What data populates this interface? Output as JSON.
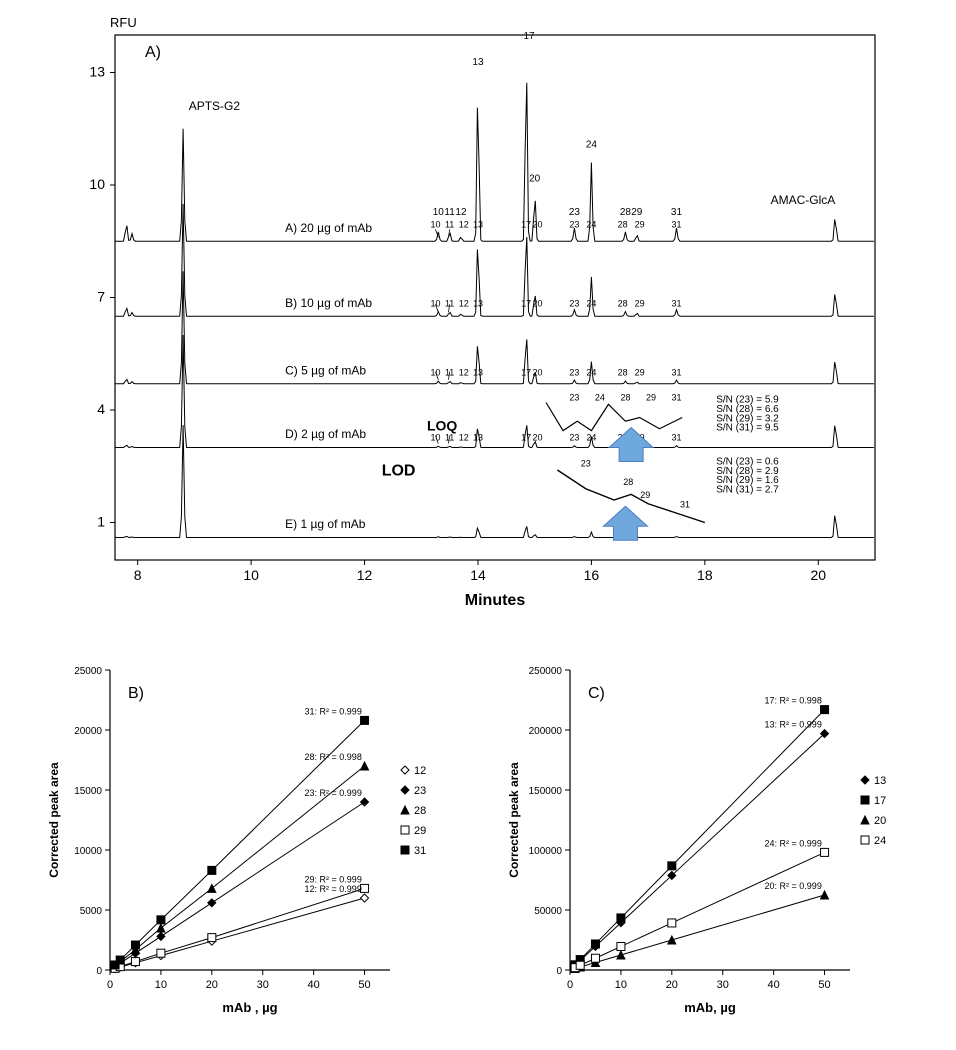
{
  "figure": {
    "background_color": "#ffffff",
    "stroke_color": "#000000",
    "arrow_color": "#6ea8dc",
    "arrow_stroke": "#4a7cbf"
  },
  "panelA": {
    "title": "A)",
    "y_axis_label": "RFU",
    "x_axis_label": "Minutes",
    "x_range": [
      7.6,
      21.0
    ],
    "x_ticks": [
      8,
      10,
      12,
      14,
      16,
      18,
      20
    ],
    "y_range": [
      0,
      14
    ],
    "y_ticks": [
      1,
      4,
      7,
      10,
      13
    ],
    "axis_fontsize": 14,
    "title_fontsize": 16,
    "label_fontsize": 11,
    "trace_color": "#000000",
    "trace_width": 1,
    "traces": [
      {
        "id": "A",
        "baseline": 8.5,
        "label": "A) 20 µg of mAb",
        "big": true
      },
      {
        "id": "B",
        "baseline": 6.5,
        "label": "B) 10 µg of mAb",
        "big": false
      },
      {
        "id": "C",
        "baseline": 4.7,
        "label": "C) 5 µg of mAb",
        "big": false
      },
      {
        "id": "D",
        "baseline": 3.0,
        "label": "D) 2 µg of mAb",
        "big": false
      },
      {
        "id": "E",
        "baseline": 0.6,
        "label": "E) 1 µg of mAb",
        "big": false
      }
    ],
    "peak_labels_top": [
      {
        "x": 8.9,
        "text": "APTS-G2"
      },
      {
        "x": 13.3,
        "text": "10"
      },
      {
        "x": 13.5,
        "text": "11"
      },
      {
        "x": 13.7,
        "text": "12"
      },
      {
        "x": 14.0,
        "text": "13"
      },
      {
        "x": 14.9,
        "text": "17"
      },
      {
        "x": 15.0,
        "text": "20"
      },
      {
        "x": 15.7,
        "text": "23"
      },
      {
        "x": 16.0,
        "text": "24"
      },
      {
        "x": 16.6,
        "text": "28"
      },
      {
        "x": 16.8,
        "text": "29"
      },
      {
        "x": 17.5,
        "text": "31"
      },
      {
        "x": 20.3,
        "text": "AMAC-GlcA"
      }
    ],
    "loq_label": "LOQ",
    "lod_label": "LOD",
    "sn_values_d": [
      "S/N (23) = 5.9",
      "S/N (28) = 6.6",
      "S/N (29) = 3.2",
      "S/N (31) = 9.5"
    ],
    "sn_values_e": [
      "S/N (23) = 0.6",
      "S/N (28) = 2.9",
      "S/N (29) = 1.6",
      "S/N (31) = 2.7"
    ]
  },
  "panelB": {
    "title": "B)",
    "x_label": "mAb , µg",
    "y_label": "Corrected peak area",
    "x_range": [
      0,
      55
    ],
    "x_ticks": [
      0,
      10,
      20,
      30,
      40,
      50
    ],
    "y_range": [
      0,
      25000
    ],
    "y_ticks": [
      0,
      5000,
      10000,
      15000,
      20000,
      25000
    ],
    "axis_fontsize": 12,
    "title_fontsize": 16,
    "series": [
      {
        "key": "12",
        "name": "12",
        "marker": "diamond",
        "fill": "#ffffff",
        "stroke": "#000000",
        "values": [
          [
            1,
            120
          ],
          [
            2,
            250
          ],
          [
            5,
            600
          ],
          [
            10,
            1200
          ],
          [
            20,
            2400
          ],
          [
            50,
            6000
          ]
        ],
        "r2_label": "12: R² = 0.999"
      },
      {
        "key": "23",
        "name": "23",
        "marker": "diamond",
        "fill": "#000000",
        "stroke": "#000000",
        "values": [
          [
            1,
            280
          ],
          [
            2,
            560
          ],
          [
            5,
            1400
          ],
          [
            10,
            2800
          ],
          [
            20,
            5600
          ],
          [
            50,
            14000
          ]
        ],
        "r2_label": "23: R² = 0.999"
      },
      {
        "key": "28",
        "name": "28",
        "marker": "triangle",
        "fill": "#000000",
        "stroke": "#000000",
        "values": [
          [
            1,
            340
          ],
          [
            2,
            680
          ],
          [
            5,
            1700
          ],
          [
            10,
            3500
          ],
          [
            20,
            6800
          ],
          [
            50,
            17000
          ]
        ],
        "r2_label": "28: R² = 0.998"
      },
      {
        "key": "29",
        "name": "29",
        "marker": "square",
        "fill": "#ffffff",
        "stroke": "#000000",
        "values": [
          [
            1,
            140
          ],
          [
            2,
            280
          ],
          [
            5,
            700
          ],
          [
            10,
            1400
          ],
          [
            20,
            2700
          ],
          [
            50,
            6800
          ]
        ],
        "r2_label": "29: R² = 0.999"
      },
      {
        "key": "31",
        "name": "31",
        "marker": "square",
        "fill": "#000000",
        "stroke": "#000000",
        "values": [
          [
            1,
            420
          ],
          [
            2,
            830
          ],
          [
            5,
            2080
          ],
          [
            10,
            4180
          ],
          [
            20,
            8300
          ],
          [
            50,
            20800
          ]
        ],
        "r2_label": "31: R² = 0.999"
      }
    ]
  },
  "panelC": {
    "title": "C)",
    "x_label": "mAb, µg",
    "y_label": "Corrected peak area",
    "x_range": [
      0,
      55
    ],
    "x_ticks": [
      0,
      10,
      20,
      30,
      40,
      50
    ],
    "y_range": [
      0,
      250000
    ],
    "y_ticks": [
      0,
      50000,
      100000,
      150000,
      200000,
      250000
    ],
    "axis_fontsize": 12,
    "title_fontsize": 16,
    "series": [
      {
        "key": "13",
        "name": "13",
        "marker": "diamond",
        "fill": "#000000",
        "stroke": "#000000",
        "values": [
          [
            1,
            3940
          ],
          [
            2,
            7880
          ],
          [
            5,
            19700
          ],
          [
            10,
            39400
          ],
          [
            20,
            78800
          ],
          [
            50,
            197000
          ]
        ],
        "r2_label": "13: R² = 0.999"
      },
      {
        "key": "17",
        "name": "17",
        "marker": "square",
        "fill": "#000000",
        "stroke": "#000000",
        "values": [
          [
            1,
            4340
          ],
          [
            2,
            8680
          ],
          [
            5,
            21700
          ],
          [
            10,
            43400
          ],
          [
            20,
            86800
          ],
          [
            50,
            217000
          ]
        ],
        "r2_label": "17: R² = 0.998"
      },
      {
        "key": "20",
        "name": "20",
        "marker": "triangle",
        "fill": "#000000",
        "stroke": "#000000",
        "values": [
          [
            1,
            1250
          ],
          [
            2,
            2500
          ],
          [
            5,
            6250
          ],
          [
            10,
            12500
          ],
          [
            20,
            25000
          ],
          [
            50,
            62500
          ]
        ],
        "r2_label": "20: R² = 0.999"
      },
      {
        "key": "24",
        "name": "24",
        "marker": "square",
        "fill": "#ffffff",
        "stroke": "#000000",
        "values": [
          [
            1,
            1960
          ],
          [
            2,
            3920
          ],
          [
            5,
            9800
          ],
          [
            10,
            19600
          ],
          [
            20,
            39200
          ],
          [
            50,
            98000
          ]
        ],
        "r2_label": "24: R² = 0.999"
      }
    ]
  }
}
